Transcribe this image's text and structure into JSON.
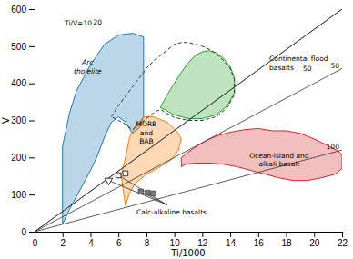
{
  "chart_data": {
    "type": "scatter",
    "xlabel": "Ti/1000",
    "ylabel": "V",
    "xlim": [
      0,
      22
    ],
    "ylim": [
      0,
      600
    ],
    "xticks": [
      0,
      2,
      4,
      6,
      8,
      10,
      12,
      14,
      16,
      18,
      20,
      22
    ],
    "yticks": [
      0,
      100,
      200,
      300,
      400,
      500,
      600
    ],
    "series": [
      {
        "type": "polygon",
        "x": [
          2,
          2,
          2.5,
          3,
          4,
          5,
          6,
          7,
          7.8,
          7.8,
          7.5,
          7.0,
          6.5,
          6.0,
          5.5,
          5.0,
          4.5,
          4.0,
          3.5,
          3.0,
          2.5,
          2
        ],
        "values": [
          20,
          230,
          320,
          380,
          450,
          505,
          530,
          535,
          525,
          310,
          280,
          265,
          295,
          310,
          295,
          255,
          205,
          165,
          130,
          95,
          60,
          20
        ]
      },
      {
        "type": "polygon",
        "x": [
          6.2,
          6.5,
          6.8,
          7.2,
          7.8,
          8.5,
          9.5,
          10.2,
          10.5,
          10.3,
          9.8,
          9.0,
          8.0,
          7.2,
          6.8,
          6.5,
          6.2
        ],
        "values": [
          150,
          200,
          255,
          285,
          310,
          310,
          295,
          270,
          250,
          220,
          195,
          175,
          155,
          130,
          105,
          70,
          150
        ]
      },
      {
        "type": "polygon",
        "x": [
          9.0,
          9.5,
          10.0,
          10.5,
          11.0,
          11.5,
          12.0,
          12.5,
          13.0,
          13.5,
          14.0,
          14.3,
          14.3,
          13.8,
          13.0,
          12.0,
          11.0,
          10.0,
          9.5,
          9.0
        ],
        "values": [
          335,
          370,
          400,
          430,
          455,
          475,
          485,
          488,
          482,
          468,
          445,
          415,
          375,
          340,
          315,
          305,
          305,
          315,
          325,
          335
        ]
      },
      {
        "type": "line",
        "line_style": "dashed",
        "x": [
          5.5,
          6.0,
          6.5,
          7.0,
          7.5,
          8.0,
          8.5,
          9.0,
          9.5,
          10.0,
          10.5,
          11.0,
          11.5,
          12.0,
          12.5,
          13.0,
          13.5,
          14.0,
          14.3,
          14.3,
          13.8,
          13.0,
          12.0,
          11.0,
          10.0,
          9.5,
          9.0,
          8.5,
          8.0,
          7.5,
          7.0,
          6.5,
          6.0,
          5.5
        ],
        "values": [
          310,
          340,
          365,
          390,
          415,
          440,
          460,
          475,
          490,
          505,
          510,
          510,
          505,
          500,
          492,
          480,
          462,
          440,
          410,
          370,
          335,
          310,
          300,
          300,
          308,
          318,
          330,
          320,
          305,
          290,
          275,
          290,
          300,
          310
        ]
      },
      {
        "type": "polygon",
        "x": [
          10.5,
          11.0,
          11.8,
          12.5,
          13.2,
          14.0,
          15.0,
          16.0,
          17.0,
          18.0,
          19.0,
          20.0,
          21.0,
          21.8,
          22.0,
          22.0,
          21.5,
          20.5,
          19.5,
          18.5,
          17.5,
          16.5,
          15.5,
          14.5,
          13.5,
          12.5,
          11.5,
          10.8,
          10.5,
          10.5
        ],
        "values": [
          200,
          215,
          235,
          250,
          260,
          268,
          275,
          278,
          272,
          272,
          265,
          250,
          232,
          215,
          205,
          170,
          155,
          145,
          138,
          138,
          145,
          155,
          165,
          175,
          182,
          185,
          185,
          182,
          175,
          200
        ]
      },
      {
        "type": "line",
        "line_style": "solid",
        "x": [
          0,
          22
        ],
        "values": [
          0,
          600
        ]
      },
      {
        "type": "line",
        "line_style": "solid",
        "x": [
          0,
          22
        ],
        "values": [
          0,
          600
        ]
      },
      {
        "type": "line",
        "line_style": "solid",
        "x": [
          0,
          22
        ],
        "values": [
          0,
          440
        ]
      },
      {
        "type": "line",
        "line_style": "solid",
        "x": [
          0,
          22
        ],
        "values": [
          0,
          220
        ]
      },
      {
        "type": "line",
        "line_style": "solid",
        "x": [
          9.5,
          5.3
        ],
        "values": [
          72,
          138
        ]
      },
      {
        "type": "line",
        "line_style": "solid",
        "x": [
          9.5,
          6.0
        ],
        "values": [
          72,
          152
        ]
      },
      {
        "type": "line",
        "line_style": "solid",
        "x": [
          9.5,
          7.6
        ],
        "values": [
          72,
          108
        ]
      },
      {
        "type": "scatter",
        "marker": "square-open",
        "x": [
          6.0,
          6.5
        ],
        "values": [
          152,
          157
        ]
      },
      {
        "type": "scatter",
        "marker": "triangle-down-open",
        "x": [
          5.3
        ],
        "values": [
          138
        ]
      },
      {
        "type": "scatter",
        "marker": "square",
        "x": [
          7.6,
          8.1,
          8.5
        ],
        "values": [
          108,
          105,
          103
        ]
      }
    ],
    "annotations": [
      {
        "text": "Ti/V=10",
        "x": 2.15,
        "y": 570
      },
      {
        "text": "20",
        "x": 4.2,
        "y": 572
      },
      {
        "text": "50",
        "x": 21.8,
        "y": 448
      },
      {
        "text": "100",
        "x": 21.8,
        "y": 230
      },
      {
        "text": "50",
        "x": 19.2,
        "y": 440
      },
      {
        "text": "Calc-alkaline basalts",
        "x": 9.8,
        "y": 62
      },
      {
        "text": "Arc\ntholeiite",
        "x": 3.8,
        "y": 445
      },
      {
        "text": "MORB\nand\nBAB",
        "x": 8.0,
        "y": 268
      },
      {
        "text": "Continental flood\nbasalts",
        "x": 16.8,
        "y": 455
      },
      {
        "text": "Ocean-island and\nalkali basalt",
        "x": 17.5,
        "y": 195
      }
    ]
  }
}
